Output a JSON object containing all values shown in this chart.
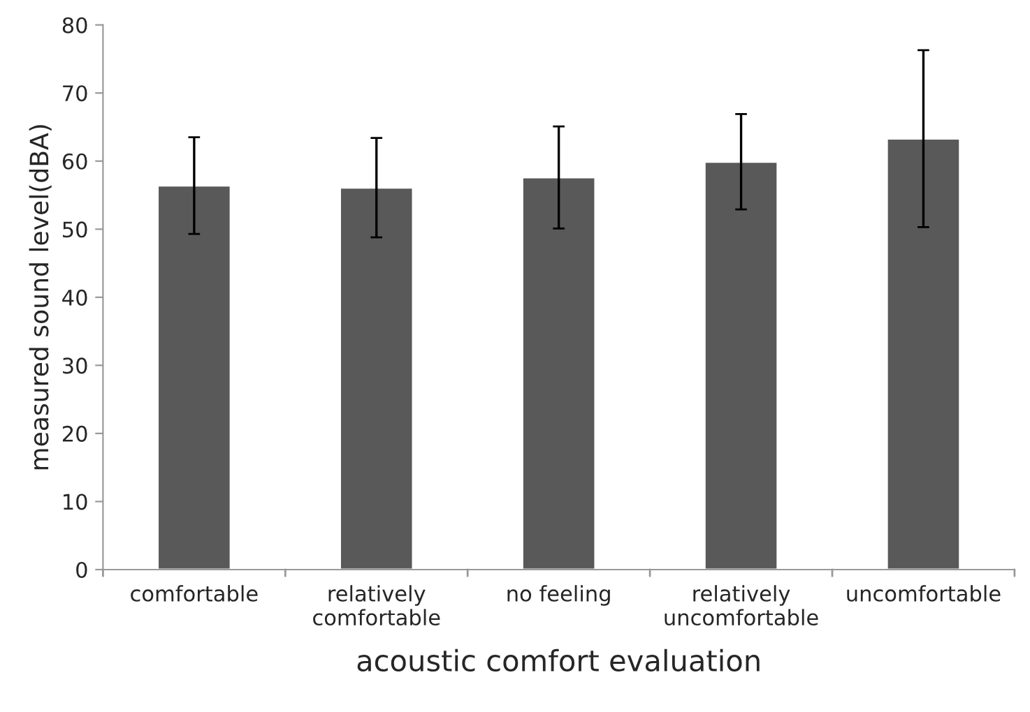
{
  "chart_data": {
    "type": "bar",
    "xlabel": "acoustic comfort evaluation",
    "ylabel": "measured sound level(dBA)",
    "categories": [
      "comfortable",
      "relatively\ncomfortable",
      "no feeling",
      "relatively\nuncomfortable",
      "uncomfortable"
    ],
    "values": [
      56.4,
      56.1,
      57.6,
      59.9,
      63.3
    ],
    "errors": [
      7.1,
      7.3,
      7.5,
      7.0,
      13.0
    ],
    "color": "#595959",
    "ylim": [
      0,
      80
    ],
    "yticks": [
      0,
      10,
      20,
      30,
      40,
      50,
      60,
      70,
      80
    ],
    "grid": false,
    "legend": false
  }
}
